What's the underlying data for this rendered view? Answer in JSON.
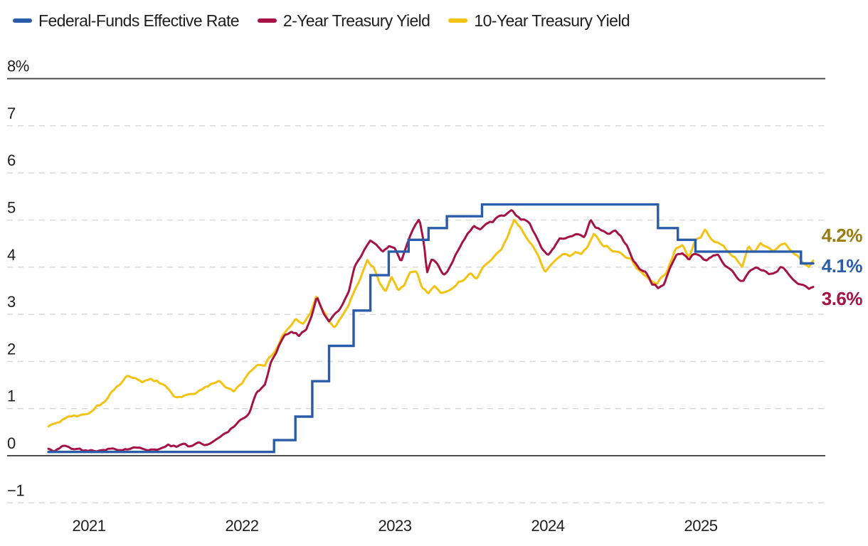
{
  "legend": {
    "items": [
      {
        "label": "Federal-Funds Effective Rate",
        "color": "#2A5CAA"
      },
      {
        "label": "2-Year Treasury Yield",
        "color": "#A51244"
      },
      {
        "label": "10-Year Treasury Yield",
        "color": "#F3C212"
      }
    ]
  },
  "end_labels": [
    {
      "text": "4.2%",
      "color": "#9A7B10"
    },
    {
      "text": "4.1%",
      "color": "#2A5CAA"
    },
    {
      "text": "3.6%",
      "color": "#A51244"
    }
  ],
  "colors": {
    "fed_funds_line": "#2A5CAA",
    "two_year_line": "#A51244",
    "ten_year_line": "#F3C212",
    "solid_axis": "#4D4D4D",
    "dashed_grid": "#D9D9D9",
    "tick_text": "#1E1E1E"
  },
  "chart_data": {
    "type": "line",
    "title": "",
    "xlabel": "",
    "ylabel": "",
    "grid": "horizontal-dashed",
    "legend_position": "top-left",
    "xlim": [
      2020.735,
      2025.78
    ],
    "ylim": [
      -1,
      8
    ],
    "x_ticks": [
      {
        "value": 2021,
        "label": "2021"
      },
      {
        "value": 2022,
        "label": "2022"
      },
      {
        "value": 2023,
        "label": "2023"
      },
      {
        "value": 2024,
        "label": "2024"
      },
      {
        "value": 2025,
        "label": "2025"
      }
    ],
    "y_gridlines": [
      {
        "value": 8,
        "label": "8%",
        "solid": true
      },
      {
        "value": 7,
        "label": "7",
        "solid": false
      },
      {
        "value": 6,
        "label": "6",
        "solid": false
      },
      {
        "value": 5,
        "label": "5",
        "solid": false
      },
      {
        "value": 4,
        "label": "4",
        "solid": false
      },
      {
        "value": 3,
        "label": "3",
        "solid": false
      },
      {
        "value": 2,
        "label": "2",
        "solid": false
      },
      {
        "value": 1,
        "label": "1",
        "solid": false
      },
      {
        "value": 0,
        "label": "0",
        "solid": true
      },
      {
        "value": -1,
        "label": "−1",
        "solid": false
      }
    ],
    "series": [
      {
        "name": "Federal-Funds Effective Rate",
        "color": "#2A5CAA",
        "style": "step",
        "line_width": 3.4,
        "end_value": "4.1%",
        "points": [
          [
            2020.735,
            0.08
          ],
          [
            2022.21,
            0.33
          ],
          [
            2022.35,
            0.83
          ],
          [
            2022.46,
            1.58
          ],
          [
            2022.57,
            2.33
          ],
          [
            2022.73,
            3.08
          ],
          [
            2022.84,
            3.83
          ],
          [
            2022.96,
            4.33
          ],
          [
            2023.09,
            4.58
          ],
          [
            2023.22,
            4.83
          ],
          [
            2023.34,
            5.08
          ],
          [
            2023.57,
            5.33
          ],
          [
            2024.72,
            4.83
          ],
          [
            2024.85,
            4.58
          ],
          [
            2024.965,
            4.33
          ],
          [
            2025.655,
            4.08
          ],
          [
            2025.735,
            4.08
          ]
        ]
      },
      {
        "name": "2-Year Treasury Yield",
        "color": "#A51244",
        "style": "noisy-line",
        "line_width": 3,
        "end_value": "3.6%",
        "points": [
          [
            2020.735,
            0.15
          ],
          [
            2020.85,
            0.16
          ],
          [
            2020.95,
            0.13
          ],
          [
            2021.05,
            0.11
          ],
          [
            2021.15,
            0.14
          ],
          [
            2021.25,
            0.16
          ],
          [
            2021.35,
            0.15
          ],
          [
            2021.45,
            0.16
          ],
          [
            2021.52,
            0.22
          ],
          [
            2021.6,
            0.21
          ],
          [
            2021.7,
            0.23
          ],
          [
            2021.78,
            0.27
          ],
          [
            2021.85,
            0.42
          ],
          [
            2021.92,
            0.56
          ],
          [
            2022.0,
            0.76
          ],
          [
            2022.05,
            0.96
          ],
          [
            2022.1,
            1.32
          ],
          [
            2022.15,
            1.52
          ],
          [
            2022.19,
            1.96
          ],
          [
            2022.24,
            2.28
          ],
          [
            2022.28,
            2.52
          ],
          [
            2022.33,
            2.62
          ],
          [
            2022.37,
            2.5
          ],
          [
            2022.42,
            2.66
          ],
          [
            2022.46,
            3.06
          ],
          [
            2022.49,
            3.42
          ],
          [
            2022.53,
            3.06
          ],
          [
            2022.57,
            2.86
          ],
          [
            2022.62,
            3.06
          ],
          [
            2022.66,
            3.26
          ],
          [
            2022.7,
            3.52
          ],
          [
            2022.74,
            4.02
          ],
          [
            2022.79,
            4.32
          ],
          [
            2022.84,
            4.56
          ],
          [
            2022.88,
            4.46
          ],
          [
            2022.92,
            4.26
          ],
          [
            2022.96,
            4.42
          ],
          [
            2023.0,
            4.4
          ],
          [
            2023.04,
            4.12
          ],
          [
            2023.08,
            4.52
          ],
          [
            2023.12,
            4.82
          ],
          [
            2023.16,
            5.06
          ],
          [
            2023.19,
            4.55
          ],
          [
            2023.21,
            3.92
          ],
          [
            2023.24,
            4.12
          ],
          [
            2023.28,
            4.06
          ],
          [
            2023.32,
            3.86
          ],
          [
            2023.36,
            4.02
          ],
          [
            2023.4,
            4.26
          ],
          [
            2023.44,
            4.56
          ],
          [
            2023.48,
            4.76
          ],
          [
            2023.52,
            4.86
          ],
          [
            2023.56,
            4.76
          ],
          [
            2023.6,
            4.92
          ],
          [
            2023.64,
            4.96
          ],
          [
            2023.68,
            5.06
          ],
          [
            2023.72,
            5.1
          ],
          [
            2023.76,
            5.16
          ],
          [
            2023.8,
            5.1
          ],
          [
            2023.84,
            5.02
          ],
          [
            2023.88,
            4.92
          ],
          [
            2023.92,
            4.66
          ],
          [
            2023.96,
            4.36
          ],
          [
            2024.0,
            4.22
          ],
          [
            2024.04,
            4.36
          ],
          [
            2024.08,
            4.62
          ],
          [
            2024.12,
            4.56
          ],
          [
            2024.16,
            4.62
          ],
          [
            2024.2,
            4.68
          ],
          [
            2024.24,
            4.62
          ],
          [
            2024.28,
            4.98
          ],
          [
            2024.32,
            4.88
          ],
          [
            2024.36,
            4.78
          ],
          [
            2024.4,
            4.72
          ],
          [
            2024.44,
            4.78
          ],
          [
            2024.48,
            4.62
          ],
          [
            2024.52,
            4.42
          ],
          [
            2024.56,
            4.1
          ],
          [
            2024.6,
            3.92
          ],
          [
            2024.64,
            3.9
          ],
          [
            2024.68,
            3.62
          ],
          [
            2024.72,
            3.56
          ],
          [
            2024.76,
            3.62
          ],
          [
            2024.8,
            3.96
          ],
          [
            2024.84,
            4.22
          ],
          [
            2024.88,
            4.3
          ],
          [
            2024.92,
            4.18
          ],
          [
            2024.96,
            4.32
          ],
          [
            2025.0,
            4.26
          ],
          [
            2025.04,
            4.2
          ],
          [
            2025.08,
            4.28
          ],
          [
            2025.12,
            4.18
          ],
          [
            2025.16,
            4.0
          ],
          [
            2025.2,
            3.92
          ],
          [
            2025.24,
            3.82
          ],
          [
            2025.28,
            3.72
          ],
          [
            2025.32,
            3.92
          ],
          [
            2025.36,
            4.0
          ],
          [
            2025.4,
            3.9
          ],
          [
            2025.44,
            3.82
          ],
          [
            2025.48,
            3.88
          ],
          [
            2025.52,
            3.96
          ],
          [
            2025.56,
            3.88
          ],
          [
            2025.6,
            3.72
          ],
          [
            2025.64,
            3.62
          ],
          [
            2025.68,
            3.58
          ],
          [
            2025.71,
            3.52
          ],
          [
            2025.735,
            3.58
          ]
        ]
      },
      {
        "name": "10-Year Treasury Yield",
        "color": "#F3C212",
        "style": "noisy-line",
        "line_width": 3,
        "end_value": "4.2%",
        "points": [
          [
            2020.735,
            0.62
          ],
          [
            2020.8,
            0.74
          ],
          [
            2020.85,
            0.85
          ],
          [
            2020.9,
            0.88
          ],
          [
            2020.95,
            0.92
          ],
          [
            2021.0,
            0.95
          ],
          [
            2021.05,
            1.06
          ],
          [
            2021.1,
            1.14
          ],
          [
            2021.15,
            1.32
          ],
          [
            2021.2,
            1.5
          ],
          [
            2021.25,
            1.66
          ],
          [
            2021.3,
            1.68
          ],
          [
            2021.35,
            1.58
          ],
          [
            2021.4,
            1.63
          ],
          [
            2021.45,
            1.58
          ],
          [
            2021.5,
            1.46
          ],
          [
            2021.55,
            1.3
          ],
          [
            2021.6,
            1.24
          ],
          [
            2021.65,
            1.3
          ],
          [
            2021.7,
            1.32
          ],
          [
            2021.75,
            1.44
          ],
          [
            2021.8,
            1.56
          ],
          [
            2021.85,
            1.58
          ],
          [
            2021.9,
            1.46
          ],
          [
            2021.95,
            1.42
          ],
          [
            2022.0,
            1.56
          ],
          [
            2022.05,
            1.82
          ],
          [
            2022.1,
            1.96
          ],
          [
            2022.15,
            1.92
          ],
          [
            2022.2,
            2.12
          ],
          [
            2022.25,
            2.42
          ],
          [
            2022.3,
            2.72
          ],
          [
            2022.35,
            2.92
          ],
          [
            2022.4,
            2.8
          ],
          [
            2022.45,
            3.02
          ],
          [
            2022.49,
            3.44
          ],
          [
            2022.53,
            3.1
          ],
          [
            2022.57,
            2.86
          ],
          [
            2022.61,
            2.76
          ],
          [
            2022.65,
            2.96
          ],
          [
            2022.7,
            3.22
          ],
          [
            2022.74,
            3.56
          ],
          [
            2022.78,
            3.82
          ],
          [
            2022.82,
            4.2
          ],
          [
            2022.86,
            3.96
          ],
          [
            2022.9,
            3.66
          ],
          [
            2022.94,
            3.52
          ],
          [
            2022.98,
            3.82
          ],
          [
            2023.02,
            3.48
          ],
          [
            2023.06,
            3.64
          ],
          [
            2023.1,
            3.92
          ],
          [
            2023.14,
            3.96
          ],
          [
            2023.18,
            3.54
          ],
          [
            2023.22,
            3.4
          ],
          [
            2023.26,
            3.56
          ],
          [
            2023.3,
            3.44
          ],
          [
            2023.34,
            3.52
          ],
          [
            2023.38,
            3.56
          ],
          [
            2023.42,
            3.72
          ],
          [
            2023.46,
            3.76
          ],
          [
            2023.5,
            3.86
          ],
          [
            2023.54,
            3.8
          ],
          [
            2023.58,
            4.06
          ],
          [
            2023.62,
            4.16
          ],
          [
            2023.66,
            4.26
          ],
          [
            2023.7,
            4.36
          ],
          [
            2023.74,
            4.62
          ],
          [
            2023.78,
            4.98
          ],
          [
            2023.82,
            4.86
          ],
          [
            2023.86,
            4.62
          ],
          [
            2023.9,
            4.42
          ],
          [
            2023.94,
            4.18
          ],
          [
            2023.98,
            3.88
          ],
          [
            2024.02,
            4.02
          ],
          [
            2024.06,
            4.16
          ],
          [
            2024.1,
            4.28
          ],
          [
            2024.14,
            4.18
          ],
          [
            2024.18,
            4.3
          ],
          [
            2024.22,
            4.26
          ],
          [
            2024.26,
            4.42
          ],
          [
            2024.3,
            4.68
          ],
          [
            2024.34,
            4.52
          ],
          [
            2024.38,
            4.46
          ],
          [
            2024.42,
            4.34
          ],
          [
            2024.46,
            4.36
          ],
          [
            2024.5,
            4.24
          ],
          [
            2024.54,
            4.18
          ],
          [
            2024.58,
            3.96
          ],
          [
            2024.62,
            3.9
          ],
          [
            2024.66,
            3.8
          ],
          [
            2024.71,
            3.66
          ],
          [
            2024.76,
            3.82
          ],
          [
            2024.8,
            4.1
          ],
          [
            2024.84,
            4.36
          ],
          [
            2024.88,
            4.44
          ],
          [
            2024.92,
            4.22
          ],
          [
            2024.96,
            4.52
          ],
          [
            2025.0,
            4.58
          ],
          [
            2025.03,
            4.78
          ],
          [
            2025.07,
            4.64
          ],
          [
            2025.11,
            4.52
          ],
          [
            2025.15,
            4.48
          ],
          [
            2025.19,
            4.28
          ],
          [
            2025.23,
            4.18
          ],
          [
            2025.27,
            4.02
          ],
          [
            2025.31,
            4.46
          ],
          [
            2025.35,
            4.34
          ],
          [
            2025.39,
            4.48
          ],
          [
            2025.43,
            4.4
          ],
          [
            2025.47,
            4.34
          ],
          [
            2025.51,
            4.42
          ],
          [
            2025.55,
            4.46
          ],
          [
            2025.59,
            4.3
          ],
          [
            2025.63,
            4.24
          ],
          [
            2025.67,
            4.12
          ],
          [
            2025.71,
            4.04
          ],
          [
            2025.735,
            4.14
          ]
        ]
      }
    ]
  }
}
